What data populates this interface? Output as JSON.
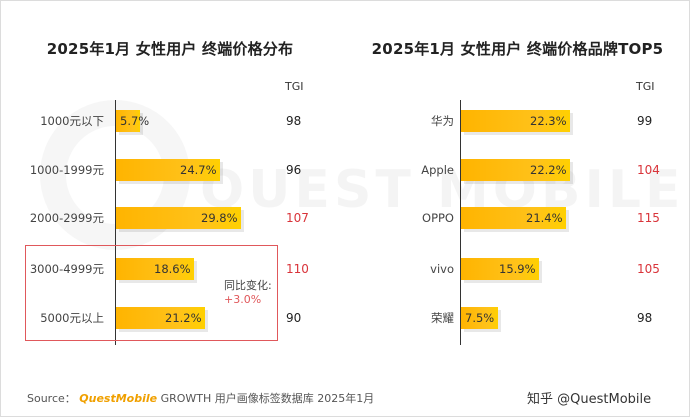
{
  "chart_data": [
    {
      "type": "bar",
      "orientation": "horizontal",
      "title": "2025年1月 女性用户 终端价格分布",
      "value_suffix": "%",
      "categories": [
        "1000元以下",
        "1000-1999元",
        "2000-2999元",
        "3000-4999元",
        "5000元以上"
      ],
      "values": [
        5.7,
        24.7,
        29.8,
        18.6,
        21.2
      ],
      "value_labels": [
        "5.7%",
        "24.7%",
        "29.8%",
        "18.6%",
        "21.2%"
      ],
      "tgi_header": "TGI",
      "tgi": [
        "98",
        "96",
        "107",
        "110",
        "90"
      ],
      "tgi_highlight": [
        false,
        false,
        true,
        true,
        false
      ],
      "annotation": {
        "label": "同比变化:",
        "value": "+3.0%"
      }
    },
    {
      "type": "bar",
      "orientation": "horizontal",
      "title": "2025年1月 女性用户 终端价格品牌TOP5",
      "value_suffix": "%",
      "categories": [
        "华为",
        "Apple",
        "OPPO",
        "vivo",
        "荣耀"
      ],
      "values": [
        22.3,
        22.2,
        21.4,
        15.9,
        7.5
      ],
      "value_labels": [
        "22.3%",
        "22.2%",
        "21.4%",
        "15.9%",
        "7.5%"
      ],
      "tgi_header": "TGI",
      "tgi": [
        "99",
        "104",
        "115",
        "105",
        "98"
      ],
      "tgi_highlight": [
        false,
        true,
        true,
        true,
        false
      ]
    }
  ],
  "watermark": "QUEST MOBILE",
  "source": {
    "prefix": "Source：",
    "brand": "QuestMobile",
    "text": "GROWTH 用户画像标签数据库 2025年1月"
  },
  "credit": "知乎 @QuestMobile",
  "colors": {
    "bar": "#ffb400",
    "highlight": "#d9343a",
    "box": "#e0585b"
  }
}
